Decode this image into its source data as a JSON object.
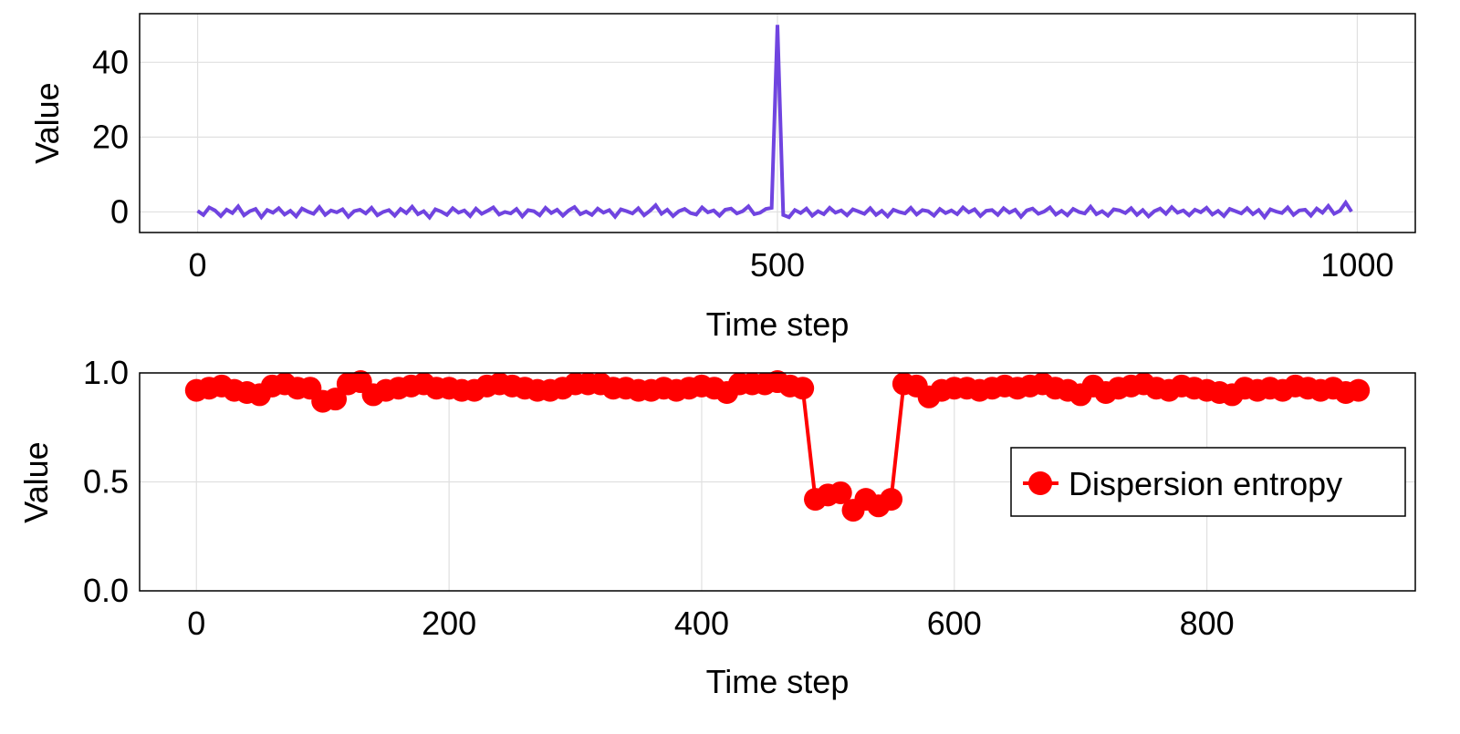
{
  "chart_data": [
    {
      "type": "line",
      "xlabel": "Time step",
      "ylabel": "Value",
      "xlim": [
        -50,
        1050
      ],
      "ylim": [
        -5.5,
        53
      ],
      "xticks": [
        0,
        500,
        1000
      ],
      "yticks": [
        0,
        20,
        40
      ],
      "grid": true,
      "color": "#7044e0",
      "x_start": 0,
      "x_step": 5,
      "values": [
        0.3,
        -0.8,
        1.2,
        0.4,
        -1.1,
        0.6,
        -0.3,
        1.5,
        -0.9,
        0.2,
        0.8,
        -1.4,
        0.5,
        -0.2,
        1.0,
        -0.7,
        0.3,
        -1.2,
        0.9,
        0.1,
        -0.5,
        1.3,
        -0.8,
        0.4,
        -0.1,
        0.7,
        -1.3,
        0.2,
        0.6,
        -0.4,
        1.1,
        -0.9,
        0.0,
        0.5,
        -1.0,
        0.8,
        -0.3,
        1.4,
        -0.6,
        0.2,
        -1.5,
        0.7,
        0.1,
        -0.8,
        1.0,
        -0.2,
        0.4,
        -1.1,
        0.9,
        -0.5,
        0.3,
        1.2,
        -0.7,
        0.0,
        -0.4,
        0.8,
        -1.2,
        0.5,
        0.2,
        -0.9,
        1.1,
        -0.3,
        0.6,
        -1.0,
        0.4,
        1.3,
        -0.6,
        0.1,
        -0.8,
        0.9,
        -0.2,
        0.5,
        -1.3,
        0.7,
        0.2,
        -0.4,
        1.0,
        -0.9,
        0.3,
        1.8,
        -0.5,
        0.6,
        -1.1,
        0.2,
        0.8,
        -0.3,
        -0.7,
        1.2,
        -0.1,
        0.4,
        -1.0,
        0.6,
        0.9,
        -0.4,
        0.2,
        1.5,
        -0.6,
        -0.2,
        0.8,
        1.1,
        50.0,
        -0.8,
        -1.4,
        0.5,
        -0.3,
        0.9,
        -1.0,
        0.2,
        -0.6,
        1.1,
        -0.2,
        0.4,
        -0.9,
        0.7,
        0.1,
        -0.5,
        1.0,
        -0.8,
        0.3,
        -1.2,
        0.6,
        0.0,
        -0.4,
        1.1,
        -0.7,
        0.5,
        0.2,
        -1.0,
        0.8,
        -0.3,
        0.4,
        -0.6,
        1.2,
        -0.1,
        0.7,
        -1.1,
        0.3,
        0.5,
        -0.8,
        1.0,
        -0.2,
        0.6,
        -1.3,
        0.4,
        0.9,
        -0.5,
        0.1,
        1.2,
        -0.7,
        0.3,
        -0.9,
        0.8,
        0.0,
        -0.4,
        1.4,
        -0.6,
        0.2,
        -1.0,
        0.7,
        0.4,
        -0.3,
        1.0,
        -0.8,
        0.5,
        -1.2,
        0.2,
        0.9,
        -0.5,
        1.3,
        -0.2,
        0.4,
        -0.9,
        0.6,
        -0.1,
        1.1,
        -0.7,
        0.3,
        -1.1,
        0.8,
        0.2,
        -0.4,
        1.0,
        -0.6,
        0.5,
        -1.4,
        0.7,
        0.1,
        -0.3,
        1.2,
        -0.8,
        0.4,
        0.6,
        -1.0,
        0.9,
        -0.2,
        1.6,
        -0.5,
        0.3,
        2.5,
        0.1
      ]
    },
    {
      "type": "line",
      "xlabel": "Time step",
      "ylabel": "Value",
      "xlim": [
        -45,
        965
      ],
      "ylim": [
        0.0,
        1.0
      ],
      "xticks": [
        0,
        200,
        400,
        600,
        800
      ],
      "yticks": [
        0.0,
        0.5,
        1.0
      ],
      "ytick_labels": [
        "0.0",
        "0.5",
        "1.0"
      ],
      "grid": true,
      "color": "#ff0000",
      "markers": true,
      "legend": {
        "label": "Dispersion entropy",
        "position": "right"
      },
      "series": [
        {
          "name": "Dispersion entropy",
          "x_start": 0,
          "x_step": 10,
          "values": [
            0.92,
            0.93,
            0.94,
            0.92,
            0.91,
            0.9,
            0.94,
            0.95,
            0.93,
            0.93,
            0.87,
            0.88,
            0.95,
            0.96,
            0.9,
            0.92,
            0.93,
            0.94,
            0.95,
            0.93,
            0.93,
            0.92,
            0.92,
            0.94,
            0.95,
            0.94,
            0.93,
            0.92,
            0.92,
            0.93,
            0.95,
            0.95,
            0.95,
            0.93,
            0.93,
            0.92,
            0.92,
            0.93,
            0.92,
            0.93,
            0.94,
            0.93,
            0.91,
            0.95,
            0.95,
            0.95,
            0.96,
            0.94,
            0.93,
            0.42,
            0.44,
            0.45,
            0.37,
            0.42,
            0.39,
            0.42,
            0.95,
            0.94,
            0.89,
            0.92,
            0.93,
            0.93,
            0.92,
            0.93,
            0.94,
            0.93,
            0.94,
            0.95,
            0.93,
            0.92,
            0.9,
            0.94,
            0.91,
            0.93,
            0.94,
            0.95,
            0.93,
            0.92,
            0.94,
            0.93,
            0.92,
            0.91,
            0.9,
            0.93,
            0.92,
            0.93,
            0.92,
            0.94,
            0.93,
            0.92,
            0.93,
            0.91,
            0.92
          ]
        }
      ]
    }
  ]
}
